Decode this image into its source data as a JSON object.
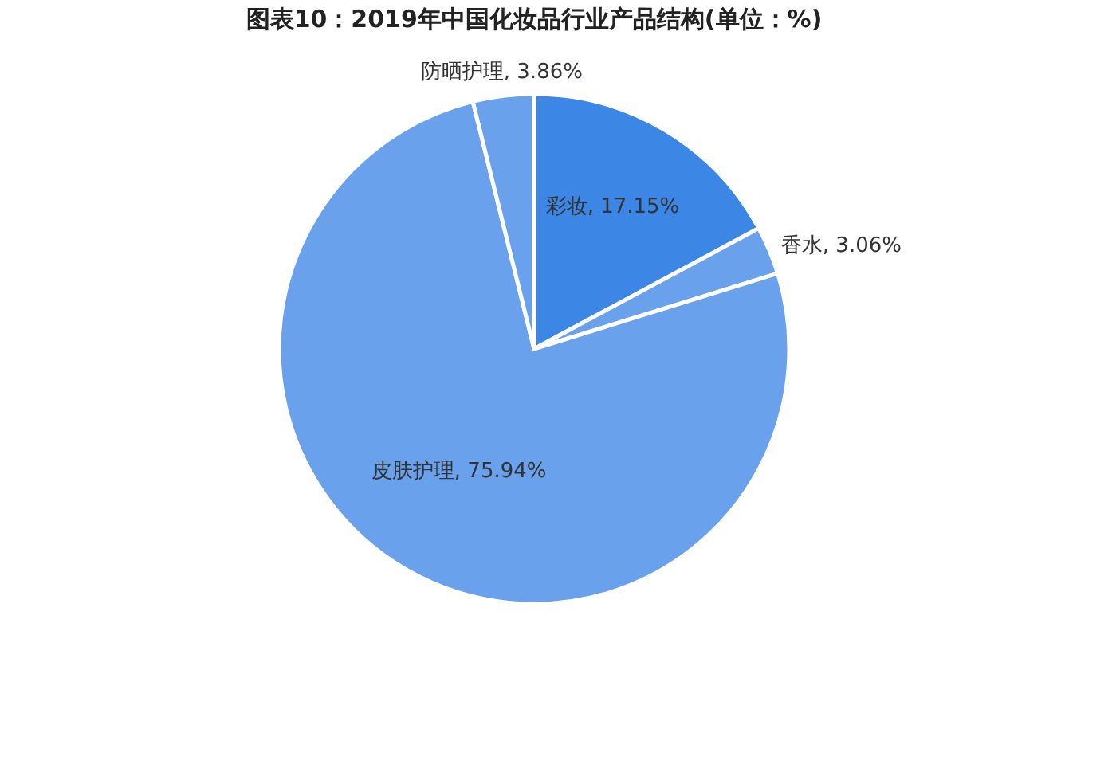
{
  "chart_data": {
    "type": "pie",
    "title": "图表10：2019年中国化妆品行业产品结构(单位：%)",
    "categories": [
      "彩妆",
      "香水",
      "皮肤护理",
      "防晒护理"
    ],
    "values": [
      17.15,
      3.06,
      75.94,
      3.86
    ],
    "colors": [
      "#3c86e6",
      "#6aa1ec",
      "#6aa1ec",
      "#6aa1ec"
    ],
    "value_labels": [
      "17.15%",
      "3.06%",
      "75.94%",
      "3.86%"
    ]
  }
}
